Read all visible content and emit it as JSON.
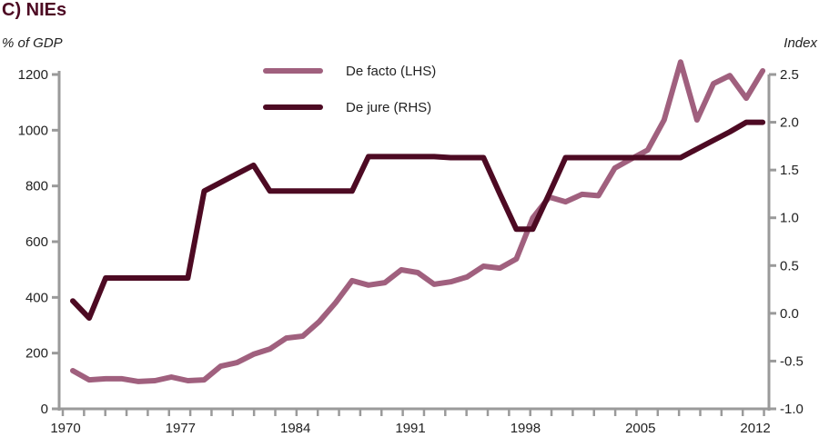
{
  "chart_data": {
    "type": "line",
    "title": "C) NIEs",
    "ylabel_left": "% of GDP",
    "ylabel_right": "Index",
    "x": [
      1970,
      1971,
      1972,
      1973,
      1974,
      1975,
      1976,
      1977,
      1978,
      1979,
      1980,
      1981,
      1982,
      1983,
      1984,
      1985,
      1986,
      1987,
      1988,
      1989,
      1990,
      1991,
      1992,
      1993,
      1994,
      1995,
      1996,
      1997,
      1998,
      1999,
      2000,
      2001,
      2002,
      2003,
      2004,
      2005,
      2006,
      2007,
      2008,
      2009,
      2010,
      2011,
      2012
    ],
    "xlim": [
      1970,
      2013
    ],
    "xticks": [
      1970,
      1977,
      1984,
      1991,
      1998,
      2005,
      2012
    ],
    "xtick_labels": [
      "1970",
      "1977",
      "1984",
      "1991",
      "1998",
      "2005",
      "2012"
    ],
    "ylim_left": [
      0,
      1200
    ],
    "yticks_left": [
      0,
      200,
      400,
      600,
      800,
      1000,
      1200
    ],
    "ytick_labels_left": [
      "0",
      "200",
      "400",
      "600",
      "800",
      "1000",
      "1200"
    ],
    "ylim_right": [
      -1.0,
      2.5
    ],
    "yticks_right": [
      -1.0,
      -0.5,
      0.0,
      0.5,
      1.0,
      1.5,
      2.0,
      2.5
    ],
    "ytick_labels_right": [
      "-1.0",
      "-0.5",
      "0.0",
      "0.5",
      "1.0",
      "1.5",
      "2.0",
      "2.5"
    ],
    "grid": false,
    "legend_position": "top-center",
    "series": [
      {
        "name": "De facto (LHS)",
        "axis": "left",
        "color": "#a0607e",
        "values": [
          137,
          104,
          108,
          108,
          98,
          101,
          114,
          101,
          104,
          153,
          166,
          196,
          215,
          254,
          261,
          313,
          381,
          460,
          444,
          453,
          499,
          489,
          447,
          456,
          473,
          512,
          505,
          538,
          685,
          760,
          743,
          770,
          765,
          864,
          897,
          929,
          1037,
          1245,
          1037,
          1167,
          1196,
          1115,
          1213
        ]
      },
      {
        "name": "De jure (RHS)",
        "axis": "right",
        "color": "#4d0a23",
        "values": [
          0.13,
          -0.05,
          0.37,
          0.37,
          0.37,
          0.37,
          0.37,
          0.37,
          1.28,
          1.37,
          1.46,
          1.55,
          1.28,
          1.28,
          1.28,
          1.28,
          1.28,
          1.28,
          1.64,
          1.64,
          1.64,
          1.64,
          1.64,
          1.63,
          1.63,
          1.63,
          1.25,
          0.88,
          0.88,
          1.25,
          1.63,
          1.63,
          1.63,
          1.63,
          1.63,
          1.63,
          1.63,
          1.63,
          1.72,
          1.81,
          1.9,
          2.0,
          2.0
        ]
      }
    ]
  }
}
